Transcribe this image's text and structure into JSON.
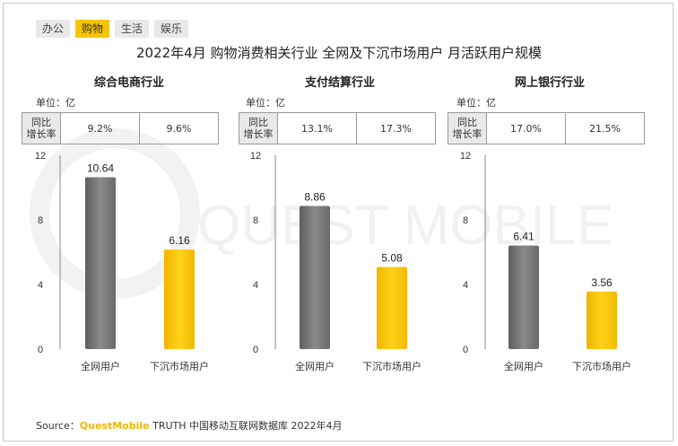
{
  "tabs": [
    {
      "label": "办公",
      "active": false
    },
    {
      "label": "购物",
      "active": true
    },
    {
      "label": "生活",
      "active": false
    },
    {
      "label": "娱乐",
      "active": false
    }
  ],
  "main_title": "2022年4月 购物消费相关行业 全网及下沉市场用户 月活跃用户规模",
  "unit_label": "单位：亿",
  "growth_label_line1": "同比",
  "growth_label_line2": "增长率",
  "watermark": "QUEST MOBILE",
  "source": {
    "prefix": "Source：",
    "brand": "QuestMobile",
    "suffix": " TRUTH 中国移动互联网数据库 2022年4月"
  },
  "colors": {
    "series_all": "#7a7a7a",
    "series_lower": "#f5c000",
    "tab_active": "#f5c400"
  },
  "chart_data": [
    {
      "type": "bar",
      "title": "综合电商行业",
      "categories": [
        "全网用户",
        "下沉市场用户"
      ],
      "values": [
        10.64,
        6.16
      ],
      "value_labels": [
        "10.64",
        "6.16"
      ],
      "growth": [
        "9.2%",
        "9.6%"
      ],
      "yticks": [
        "0",
        "4",
        "8",
        "12"
      ],
      "ylim": [
        0,
        12
      ]
    },
    {
      "type": "bar",
      "title": "支付结算行业",
      "categories": [
        "全网用户",
        "下沉市场用户"
      ],
      "values": [
        8.86,
        5.08
      ],
      "value_labels": [
        "8.86",
        "5.08"
      ],
      "growth": [
        "13.1%",
        "17.3%"
      ],
      "yticks": [
        "0",
        "4",
        "8",
        "12"
      ],
      "ylim": [
        0,
        12
      ]
    },
    {
      "type": "bar",
      "title": "网上银行行业",
      "categories": [
        "全网用户",
        "下沉市场用户"
      ],
      "values": [
        6.41,
        3.56
      ],
      "value_labels": [
        "6.41",
        "3.56"
      ],
      "growth": [
        "17.0%",
        "21.5%"
      ],
      "yticks": [
        "0",
        "4",
        "8",
        "12"
      ],
      "ylim": [
        0,
        12
      ]
    }
  ]
}
